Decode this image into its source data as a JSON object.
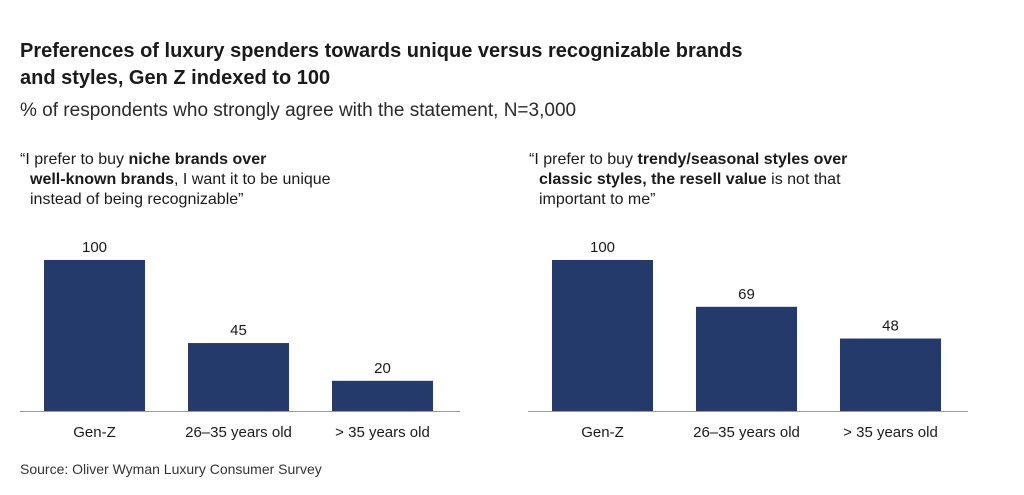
{
  "title": "Preferences of luxury spenders towards unique versus recognizable brands and styles, Gen Z indexed to 100",
  "title_lines": [
    "Preferences of luxury spenders towards unique versus recognizable brands",
    "and styles, Gen Z indexed to 100"
  ],
  "subtitle": "% of respondents who strongly agree with the statement, N=3,000",
  "source": "Source: Oliver Wyman Luxury Consumer Survey",
  "colors": {
    "bar": "#243a6b",
    "axis": "#9a9a9a"
  },
  "panel1": {
    "statement": {
      "l1_pre": "“I prefer to buy ",
      "l1_bold": "niche brands over",
      "l2_bold": "well-known brands",
      "l2_post": ", I want it to be unique",
      "l3": "instead of being recognizable”"
    }
  },
  "panel2": {
    "statement": {
      "l1_pre": "“I prefer to buy ",
      "l1_bold": "trendy/seasonal styles over",
      "l2_bold": "classic styles, the resell value",
      "l2_post": " is not that",
      "l3": "important to me”"
    }
  },
  "chart_data": [
    {
      "type": "bar",
      "title": "“I prefer to buy niche brands over well-known brands, I want it to be unique instead of being recognizable”",
      "categories": [
        "Gen-Z",
        "26–35 years old",
        "> 35 years old"
      ],
      "values": [
        100,
        45,
        20
      ],
      "ylim": [
        0,
        100
      ],
      "grid": false,
      "legend": "none"
    },
    {
      "type": "bar",
      "title": "“I prefer to buy trendy/seasonal styles over classic styles, the resell value is not that important to me”",
      "categories": [
        "Gen-Z",
        "26–35 years old",
        "> 35 years old"
      ],
      "values": [
        100,
        69,
        48
      ],
      "ylim": [
        0,
        100
      ],
      "grid": false,
      "legend": "none"
    }
  ]
}
